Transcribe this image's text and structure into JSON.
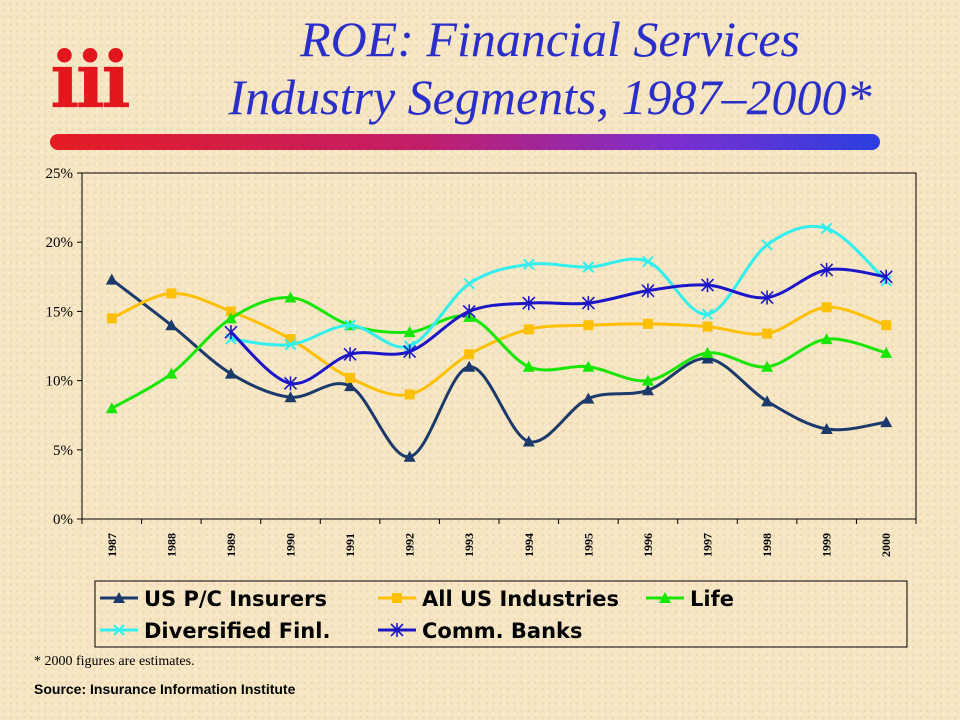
{
  "logo_text": "iii",
  "title_line1": "ROE: Financial Services",
  "title_line2": "Industry Segments, 1987–2000*",
  "footnote": "* 2000 figures are estimates.",
  "source": "Source:  Insurance Information Institute",
  "chart_data": {
    "type": "line",
    "categories": [
      "1987",
      "1988",
      "1989",
      "1990",
      "1991",
      "1992",
      "1993",
      "1994",
      "1995",
      "1996",
      "1997",
      "1998",
      "1999",
      "2000"
    ],
    "y_ticks": [
      "0%",
      "5%",
      "10%",
      "15%",
      "20%",
      "25%"
    ],
    "ylim": [
      0,
      25
    ],
    "grid": false,
    "legend_position": "bottom",
    "series": [
      {
        "name": "US P/C Insurers",
        "color": "#1b3a6b",
        "marker": "triangle",
        "values": [
          17.3,
          14.0,
          10.5,
          8.8,
          9.6,
          4.5,
          11.0,
          5.6,
          8.7,
          9.3,
          11.6,
          8.5,
          6.5,
          7.0
        ]
      },
      {
        "name": "All US Industries",
        "color": "#ffc000",
        "marker": "square",
        "values": [
          14.5,
          16.3,
          15.0,
          13.0,
          10.2,
          9.0,
          11.9,
          13.7,
          14.0,
          14.1,
          13.9,
          13.4,
          15.3,
          14.0
        ]
      },
      {
        "name": "Life",
        "color": "#19e600",
        "marker": "triangle",
        "values": [
          8.0,
          10.5,
          14.5,
          16.0,
          14.0,
          13.5,
          14.6,
          11.0,
          11.0,
          10.0,
          12.0,
          11.0,
          13.0,
          12.0
        ]
      },
      {
        "name": "Diversified Finl.",
        "color": "#33eeee",
        "marker": "x",
        "values": [
          null,
          null,
          13.0,
          12.6,
          14.0,
          12.5,
          17.0,
          18.4,
          18.2,
          18.6,
          14.8,
          19.8,
          21.0,
          17.2
        ]
      },
      {
        "name": "Comm. Banks",
        "color": "#1c16c9",
        "marker": "star",
        "values": [
          null,
          null,
          13.5,
          9.8,
          11.9,
          12.1,
          15.0,
          15.6,
          15.6,
          16.5,
          16.9,
          16.0,
          18.0,
          17.5
        ]
      }
    ]
  }
}
